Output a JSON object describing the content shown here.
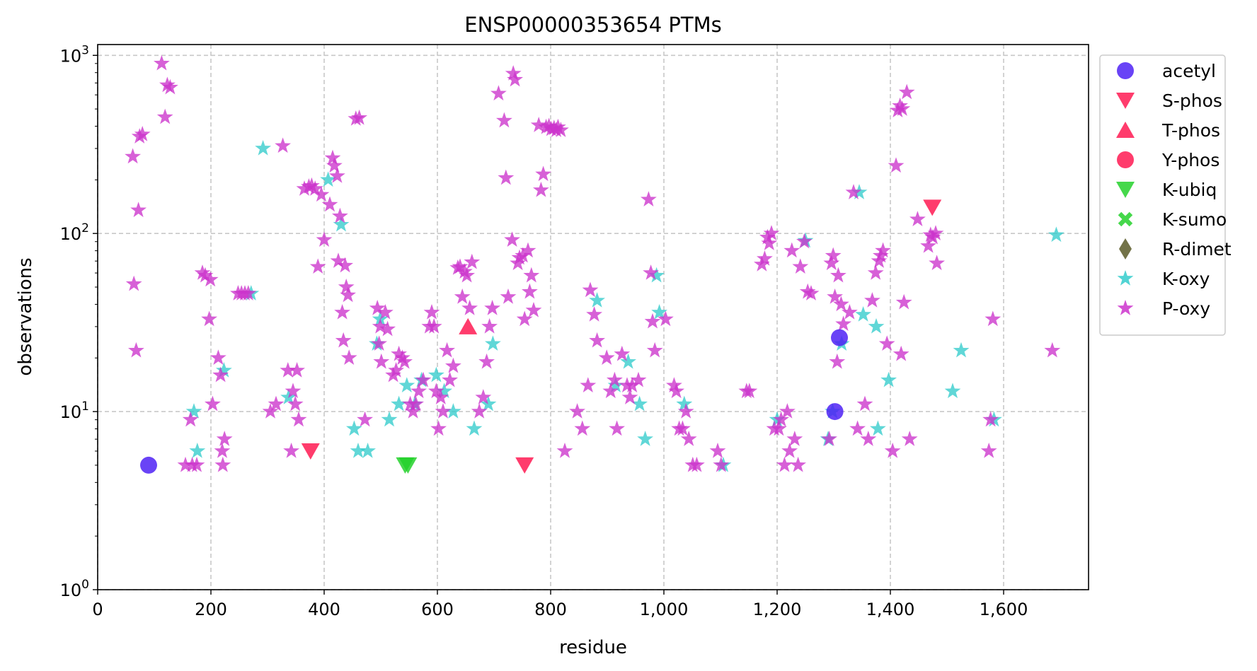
{
  "chart_data": {
    "type": "scatter",
    "title": "ENSP00000353654 PTMs",
    "xlabel": "residue",
    "ylabel": "observations",
    "xlim": [
      0,
      1750
    ],
    "ylim": [
      1,
      1150
    ],
    "yscale": "log",
    "grid": true,
    "legend_position": "right-outside-top",
    "x_ticks": [
      {
        "value": 0,
        "label": "0"
      },
      {
        "value": 200,
        "label": "200"
      },
      {
        "value": 400,
        "label": "400"
      },
      {
        "value": 600,
        "label": "600"
      },
      {
        "value": 800,
        "label": "800"
      },
      {
        "value": 1000,
        "label": "1,000"
      },
      {
        "value": 1200,
        "label": "1,200"
      },
      {
        "value": 1400,
        "label": "1,400"
      },
      {
        "value": 1600,
        "label": "1,600"
      }
    ],
    "y_ticks": [
      {
        "value": 1,
        "base": "10",
        "exp": "0"
      },
      {
        "value": 10,
        "base": "10",
        "exp": "1"
      },
      {
        "value": 100,
        "base": "10",
        "exp": "2"
      },
      {
        "value": 1000,
        "base": "10",
        "exp": "3"
      }
    ],
    "series": [
      {
        "name": "acetyl",
        "marker": "circle",
        "color": "#4f22f5",
        "points": [
          [
            90,
            5
          ],
          [
            1302,
            10
          ],
          [
            1310,
            26
          ]
        ]
      },
      {
        "name": "S-phos",
        "marker": "triangle-down",
        "color": "#ff1a52",
        "points": [
          [
            376,
            6
          ],
          [
            754,
            5
          ],
          [
            1474,
            140
          ]
        ]
      },
      {
        "name": "T-phos",
        "marker": "triangle-up",
        "color": "#ff1a52",
        "points": [
          [
            654,
            30
          ]
        ]
      },
      {
        "name": "Y-phos",
        "marker": "circle",
        "color": "#ff1a52",
        "points": []
      },
      {
        "name": "K-ubiq",
        "marker": "triangle-down",
        "color": "#25d12b",
        "points": [
          [
            543,
            5
          ],
          [
            548,
            5
          ]
        ]
      },
      {
        "name": "K-sumo",
        "marker": "x",
        "color": "#25d12b",
        "points": []
      },
      {
        "name": "R-dimet",
        "marker": "diamond",
        "color": "#5a5a28",
        "points": []
      },
      {
        "name": "K-oxy",
        "marker": "star",
        "color": "#33cccc",
        "points": [
          [
            170,
            10
          ],
          [
            176,
            6
          ],
          [
            223,
            17
          ],
          [
            271,
            46
          ],
          [
            292,
            300
          ],
          [
            337,
            12
          ],
          [
            407,
            200
          ],
          [
            430,
            112
          ],
          [
            453,
            8
          ],
          [
            460,
            6
          ],
          [
            477,
            6
          ],
          [
            493,
            24
          ],
          [
            499,
            33
          ],
          [
            515,
            9
          ],
          [
            532,
            11
          ],
          [
            546,
            14
          ],
          [
            560,
            11
          ],
          [
            572,
            15
          ],
          [
            598,
            16
          ],
          [
            612,
            13
          ],
          [
            628,
            10
          ],
          [
            665,
            8
          ],
          [
            690,
            11
          ],
          [
            698,
            24
          ],
          [
            882,
            42
          ],
          [
            915,
            14
          ],
          [
            937,
            19
          ],
          [
            957,
            11
          ],
          [
            967,
            7
          ],
          [
            987,
            58
          ],
          [
            992,
            36
          ],
          [
            1036,
            11
          ],
          [
            1105,
            5
          ],
          [
            1200,
            9
          ],
          [
            1250,
            91
          ],
          [
            1290,
            7
          ],
          [
            1298,
            10
          ],
          [
            1314,
            24
          ],
          [
            1345,
            170
          ],
          [
            1352,
            35
          ],
          [
            1375,
            30
          ],
          [
            1378,
            8
          ],
          [
            1397,
            15
          ],
          [
            1510,
            13
          ],
          [
            1525,
            22
          ],
          [
            1583,
            9
          ],
          [
            1693,
            98
          ]
        ]
      },
      {
        "name": "P-oxy",
        "marker": "star",
        "color": "#cc33cc",
        "points": [
          [
            62,
            270
          ],
          [
            64,
            52
          ],
          [
            68,
            22
          ],
          [
            72,
            135
          ],
          [
            74,
            350
          ],
          [
            79,
            360
          ],
          [
            113,
            900
          ],
          [
            119,
            450
          ],
          [
            123,
            680
          ],
          [
            128,
            660
          ],
          [
            155,
            5
          ],
          [
            164,
            9
          ],
          [
            167,
            5
          ],
          [
            175,
            5
          ],
          [
            185,
            60
          ],
          [
            190,
            58
          ],
          [
            197,
            33
          ],
          [
            199,
            55
          ],
          [
            203,
            11
          ],
          [
            213,
            20
          ],
          [
            217,
            16
          ],
          [
            220,
            6
          ],
          [
            221,
            5
          ],
          [
            224,
            7
          ],
          [
            248,
            46
          ],
          [
            254,
            46
          ],
          [
            260,
            46
          ],
          [
            266,
            46
          ],
          [
            305,
            10
          ],
          [
            315,
            11
          ],
          [
            327,
            310
          ],
          [
            336,
            17
          ],
          [
            342,
            6
          ],
          [
            345,
            13
          ],
          [
            349,
            11
          ],
          [
            352,
            17
          ],
          [
            355,
            9
          ],
          [
            365,
            178
          ],
          [
            373,
            183
          ],
          [
            378,
            185
          ],
          [
            384,
            178
          ],
          [
            389,
            65
          ],
          [
            395,
            165
          ],
          [
            400,
            92
          ],
          [
            410,
            145
          ],
          [
            415,
            265
          ],
          [
            418,
            240
          ],
          [
            423,
            210
          ],
          [
            425,
            70
          ],
          [
            428,
            125
          ],
          [
            432,
            36
          ],
          [
            434,
            25
          ],
          [
            437,
            66
          ],
          [
            439,
            50
          ],
          [
            442,
            45
          ],
          [
            444,
            20
          ],
          [
            456,
            440
          ],
          [
            462,
            445
          ],
          [
            472,
            9
          ],
          [
            494,
            38
          ],
          [
            497,
            24
          ],
          [
            499,
            30
          ],
          [
            501,
            19
          ],
          [
            508,
            36
          ],
          [
            512,
            29
          ],
          [
            522,
            16
          ],
          [
            527,
            17
          ],
          [
            532,
            21
          ],
          [
            538,
            20
          ],
          [
            542,
            19
          ],
          [
            552,
            11
          ],
          [
            557,
            10
          ],
          [
            562,
            11
          ],
          [
            567,
            13
          ],
          [
            575,
            15
          ],
          [
            586,
            30
          ],
          [
            590,
            36
          ],
          [
            594,
            30
          ],
          [
            598,
            13
          ],
          [
            602,
            8
          ],
          [
            606,
            12
          ],
          [
            610,
            10
          ],
          [
            617,
            22
          ],
          [
            622,
            15
          ],
          [
            628,
            18
          ],
          [
            636,
            64
          ],
          [
            640,
            65
          ],
          [
            644,
            44
          ],
          [
            648,
            61
          ],
          [
            652,
            58
          ],
          [
            657,
            38
          ],
          [
            661,
            69
          ],
          [
            674,
            10
          ],
          [
            681,
            12
          ],
          [
            687,
            19
          ],
          [
            692,
            30
          ],
          [
            697,
            38
          ],
          [
            708,
            610
          ],
          [
            718,
            430
          ],
          [
            721,
            205
          ],
          [
            725,
            44
          ],
          [
            732,
            92
          ],
          [
            734,
            790
          ],
          [
            737,
            730
          ],
          [
            742,
            68
          ],
          [
            745,
            73
          ],
          [
            751,
            75
          ],
          [
            754,
            33
          ],
          [
            760,
            80
          ],
          [
            763,
            47
          ],
          [
            766,
            58
          ],
          [
            770,
            37
          ],
          [
            779,
            405
          ],
          [
            783,
            175
          ],
          [
            787,
            215
          ],
          [
            792,
            395
          ],
          [
            797,
            400
          ],
          [
            801,
            385
          ],
          [
            806,
            390
          ],
          [
            810,
            380
          ],
          [
            813,
            395
          ],
          [
            818,
            380
          ],
          [
            825,
            6
          ],
          [
            847,
            10
          ],
          [
            856,
            8
          ],
          [
            866,
            14
          ],
          [
            870,
            48
          ],
          [
            877,
            35
          ],
          [
            882,
            25
          ],
          [
            899,
            20
          ],
          [
            906,
            13
          ],
          [
            913,
            15
          ],
          [
            917,
            8
          ],
          [
            926,
            21
          ],
          [
            935,
            14
          ],
          [
            940,
            12
          ],
          [
            944,
            14
          ],
          [
            955,
            15
          ],
          [
            973,
            155
          ],
          [
            977,
            60
          ],
          [
            980,
            32
          ],
          [
            984,
            22
          ],
          [
            1003,
            33
          ],
          [
            1018,
            14
          ],
          [
            1022,
            13
          ],
          [
            1027,
            8
          ],
          [
            1033,
            8
          ],
          [
            1039,
            10
          ],
          [
            1044,
            7
          ],
          [
            1051,
            5
          ],
          [
            1058,
            5
          ],
          [
            1095,
            6
          ],
          [
            1101,
            5
          ],
          [
            1146,
            13
          ],
          [
            1151,
            13
          ],
          [
            1173,
            67
          ],
          [
            1178,
            72
          ],
          [
            1183,
            95
          ],
          [
            1186,
            88
          ],
          [
            1190,
            100
          ],
          [
            1195,
            8
          ],
          [
            1203,
            8
          ],
          [
            1207,
            9
          ],
          [
            1213,
            5
          ],
          [
            1218,
            10
          ],
          [
            1222,
            6
          ],
          [
            1226,
            80
          ],
          [
            1231,
            7
          ],
          [
            1237,
            5
          ],
          [
            1241,
            65
          ],
          [
            1248,
            90
          ],
          [
            1254,
            47
          ],
          [
            1260,
            46
          ],
          [
            1292,
            7
          ],
          [
            1296,
            68
          ],
          [
            1299,
            75
          ],
          [
            1302,
            44
          ],
          [
            1306,
            19
          ],
          [
            1308,
            58
          ],
          [
            1313,
            40
          ],
          [
            1317,
            31
          ],
          [
            1328,
            36
          ],
          [
            1335,
            170
          ],
          [
            1342,
            8
          ],
          [
            1355,
            11
          ],
          [
            1361,
            7
          ],
          [
            1368,
            42
          ],
          [
            1374,
            60
          ],
          [
            1380,
            70
          ],
          [
            1383,
            75
          ],
          [
            1387,
            80
          ],
          [
            1394,
            24
          ],
          [
            1404,
            6
          ],
          [
            1410,
            240
          ],
          [
            1413,
            490
          ],
          [
            1417,
            520
          ],
          [
            1419,
            21
          ],
          [
            1421,
            500
          ],
          [
            1424,
            41
          ],
          [
            1429,
            620
          ],
          [
            1434,
            7
          ],
          [
            1448,
            120
          ],
          [
            1467,
            85
          ],
          [
            1471,
            98
          ],
          [
            1475,
            95
          ],
          [
            1480,
            100
          ],
          [
            1482,
            68
          ],
          [
            1574,
            6
          ],
          [
            1577,
            9
          ],
          [
            1581,
            33
          ],
          [
            1686,
            22
          ]
        ]
      }
    ]
  }
}
